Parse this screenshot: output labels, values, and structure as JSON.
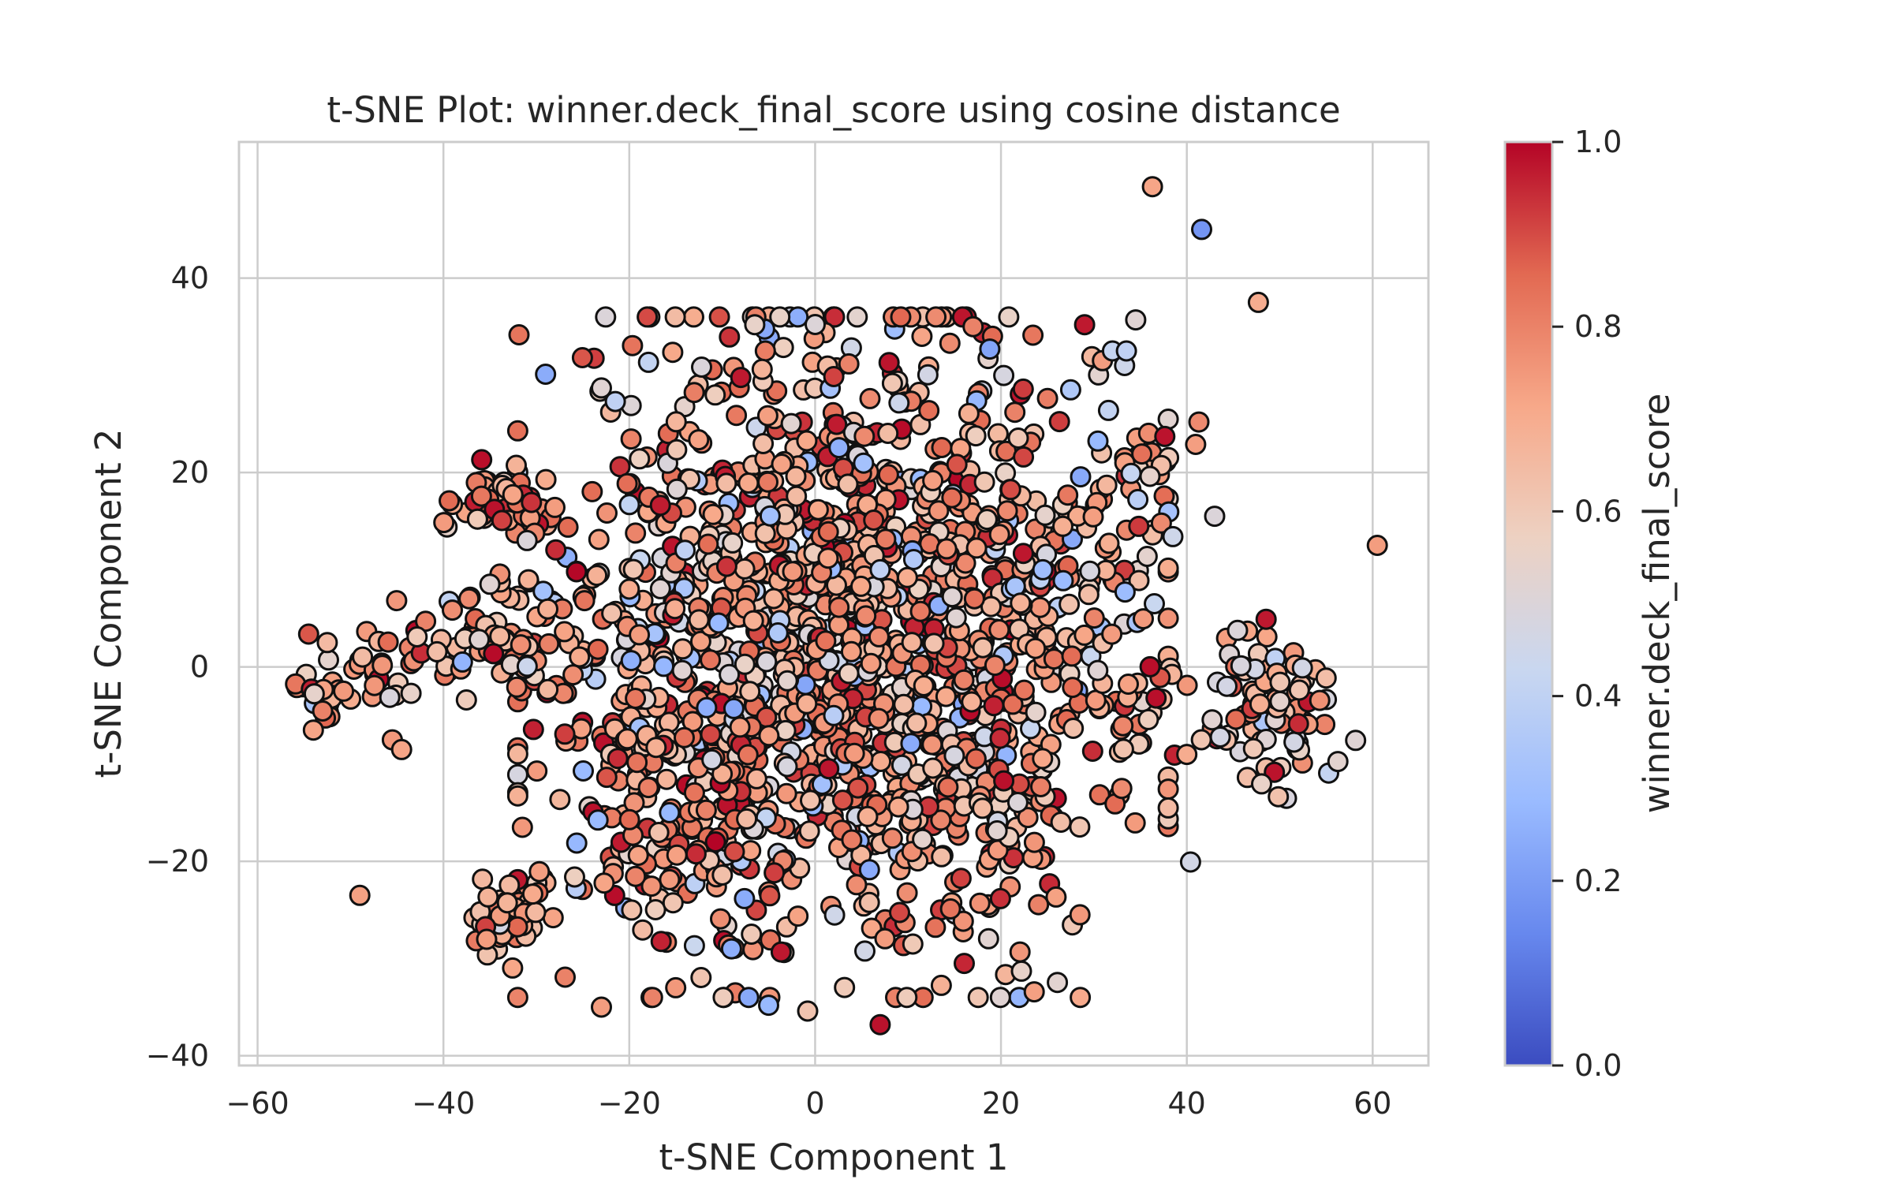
{
  "chart_data": {
    "type": "scatter",
    "title": "t-SNE Plot: winner.deck_final_score using cosine distance",
    "xlabel": "t-SNE Component 1",
    "ylabel": "t-SNE Component 2",
    "xlim": [
      -62,
      66
    ],
    "ylim": [
      -41,
      54
    ],
    "xticks": [
      -60,
      -40,
      -20,
      0,
      20,
      40,
      60
    ],
    "yticks": [
      -40,
      -20,
      0,
      20,
      40
    ],
    "xtick_labels": [
      "−60",
      "−40",
      "−20",
      "0",
      "20",
      "40",
      "60"
    ],
    "ytick_labels": [
      "−40",
      "−20",
      "0",
      "20",
      "40"
    ],
    "grid": true,
    "colorbar": {
      "label": "winner.deck_final_score",
      "range": [
        0.0,
        1.0
      ],
      "ticks": [
        0.0,
        0.2,
        0.4,
        0.6,
        0.8,
        1.0
      ],
      "tick_labels": [
        "0.0",
        "0.2",
        "0.4",
        "0.6",
        "0.8",
        "1.0"
      ],
      "colormap": "coolwarm",
      "stops": [
        "#3b4cc0",
        "#6788ee",
        "#9abbff",
        "#c9d7f0",
        "#edd1c2",
        "#f7a889",
        "#e26952",
        "#b40426"
      ]
    },
    "points": [
      [
        36.3,
        49.4,
        0.72
      ],
      [
        41.6,
        45.0,
        0.18
      ],
      [
        47.7,
        37.5,
        0.7
      ],
      [
        60.5,
        12.5,
        0.74
      ],
      [
        -49.0,
        -23.5,
        0.73
      ],
      [
        -23.0,
        28.7,
        0.52
      ],
      [
        -21.5,
        27.3,
        0.4
      ],
      [
        -6.5,
        35.2,
        0.55
      ],
      [
        22.2,
        -31.3,
        0.55
      ],
      [
        -23.0,
        -35.0,
        0.74
      ],
      [
        -5.0,
        -34.8,
        0.28
      ],
      [
        7.0,
        -36.8,
        0.98
      ],
      [
        -0.8,
        -35.4,
        0.62
      ],
      [
        -35.0,
        8.5,
        0.52
      ],
      [
        -31.0,
        13.0,
        0.5
      ],
      [
        -20.0,
        8.0,
        0.7
      ],
      [
        29.0,
        35.2,
        0.97
      ],
      [
        34.5,
        35.7,
        0.52
      ],
      [
        18.8,
        32.7,
        0.22
      ],
      [
        32.0,
        32.5,
        0.42
      ],
      [
        33.3,
        31.0,
        0.45
      ],
      [
        33.5,
        32.5,
        0.4
      ],
      [
        21.5,
        26.2,
        0.8
      ],
      [
        34.0,
        19.9,
        0.42
      ],
      [
        38.5,
        13.4,
        0.45
      ],
      [
        43.0,
        15.5,
        0.5
      ],
      [
        36.5,
        6.5,
        0.43
      ],
      [
        27.5,
        28.5,
        0.35
      ],
      [
        13.0,
        36.0,
        0.78
      ],
      [
        17.0,
        35.0,
        0.8
      ],
      [
        11.5,
        34.0,
        0.72
      ],
      [
        14.5,
        33.3,
        0.78
      ],
      [
        24.5,
        10.0,
        0.3
      ],
      [
        -9.0,
        -29.0,
        0.25
      ],
      [
        -4.0,
        3.5,
        0.35
      ],
      [
        2.0,
        -5.0,
        0.38
      ],
      [
        7.0,
        10.0,
        0.4
      ],
      [
        -14.0,
        12.0,
        0.4
      ],
      [
        -54.0,
        -6.5,
        0.72
      ],
      [
        -45.5,
        -7.5,
        0.75
      ],
      [
        -44.5,
        -8.5,
        0.72
      ],
      [
        -52.5,
        2.5,
        0.65
      ],
      [
        -31.5,
        -16.5,
        0.75
      ],
      [
        38.0,
        -14.5,
        0.65
      ],
      [
        40.0,
        -9.0,
        0.7
      ],
      [
        33.0,
        -12.5,
        0.78
      ],
      [
        28.5,
        -25.5,
        0.75
      ],
      [
        -15.0,
        -33.0,
        0.75
      ],
      [
        -17.5,
        -34.0,
        0.8
      ]
    ]
  }
}
